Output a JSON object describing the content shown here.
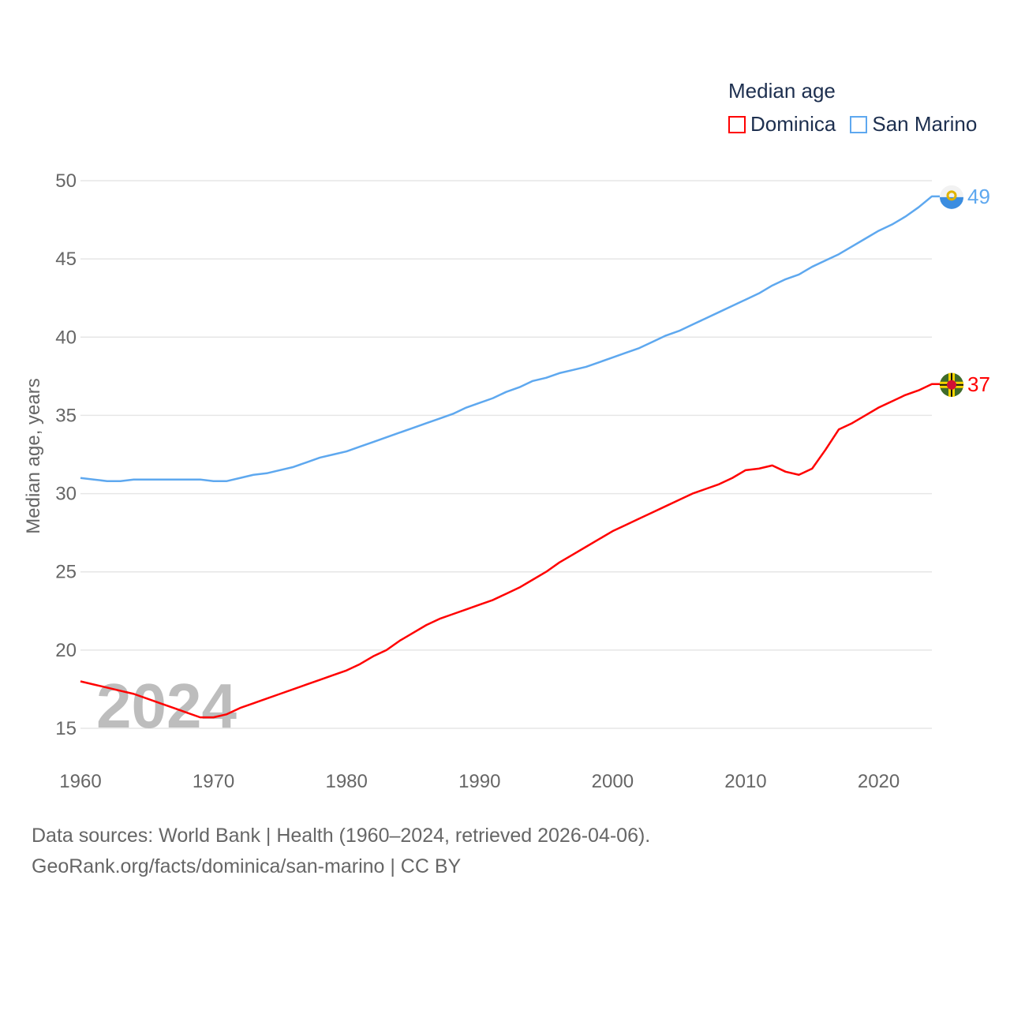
{
  "chart_data": {
    "type": "line",
    "legend_title": "Median age",
    "legend_placement": "top-right",
    "ylabel": "Median age, years",
    "xlabel": "",
    "ylim": [
      15,
      50
    ],
    "xlim": [
      1960,
      2024
    ],
    "yticks": [
      15,
      20,
      25,
      30,
      35,
      40,
      45,
      50
    ],
    "xticks": [
      1960,
      1970,
      1980,
      1990,
      2000,
      2010,
      2020
    ],
    "grid": true,
    "year_watermark": "2024",
    "x": [
      1960,
      1961,
      1962,
      1963,
      1964,
      1965,
      1966,
      1967,
      1968,
      1969,
      1970,
      1971,
      1972,
      1973,
      1974,
      1975,
      1976,
      1977,
      1978,
      1979,
      1980,
      1981,
      1982,
      1983,
      1984,
      1985,
      1986,
      1987,
      1988,
      1989,
      1990,
      1991,
      1992,
      1993,
      1994,
      1995,
      1996,
      1997,
      1998,
      1999,
      2000,
      2001,
      2002,
      2003,
      2004,
      2005,
      2006,
      2007,
      2008,
      2009,
      2010,
      2011,
      2012,
      2013,
      2014,
      2015,
      2016,
      2017,
      2018,
      2019,
      2020,
      2021,
      2022,
      2023,
      2024
    ],
    "series": [
      {
        "name": "Dominica",
        "color": "#ff0000",
        "end_label": "37",
        "values": [
          18.0,
          17.8,
          17.6,
          17.4,
          17.2,
          16.9,
          16.6,
          16.3,
          16.0,
          15.7,
          15.7,
          15.9,
          16.3,
          16.6,
          16.9,
          17.2,
          17.5,
          17.8,
          18.1,
          18.4,
          18.7,
          19.1,
          19.6,
          20.0,
          20.6,
          21.1,
          21.6,
          22.0,
          22.3,
          22.6,
          22.9,
          23.2,
          23.6,
          24.0,
          24.5,
          25.0,
          25.6,
          26.1,
          26.6,
          27.1,
          27.6,
          28.0,
          28.4,
          28.8,
          29.2,
          29.6,
          30.0,
          30.3,
          30.6,
          31.0,
          31.5,
          31.6,
          31.8,
          31.4,
          31.2,
          31.6,
          32.8,
          34.1,
          34.5,
          35.0,
          35.5,
          35.9,
          36.3,
          36.6,
          37.0
        ]
      },
      {
        "name": "San Marino",
        "color": "#5ea8ef",
        "end_label": "49",
        "values": [
          31.0,
          30.9,
          30.8,
          30.8,
          30.9,
          30.9,
          30.9,
          30.9,
          30.9,
          30.9,
          30.8,
          30.8,
          31.0,
          31.2,
          31.3,
          31.5,
          31.7,
          32.0,
          32.3,
          32.5,
          32.7,
          33.0,
          33.3,
          33.6,
          33.9,
          34.2,
          34.5,
          34.8,
          35.1,
          35.5,
          35.8,
          36.1,
          36.5,
          36.8,
          37.2,
          37.4,
          37.7,
          37.9,
          38.1,
          38.4,
          38.7,
          39.0,
          39.3,
          39.7,
          40.1,
          40.4,
          40.8,
          41.2,
          41.6,
          42.0,
          42.4,
          42.8,
          43.3,
          43.7,
          44.0,
          44.5,
          44.9,
          45.3,
          45.8,
          46.3,
          46.8,
          47.2,
          47.7,
          48.3,
          49.0
        ]
      }
    ]
  },
  "footer": {
    "line1": "Data sources: World Bank | Health (1960–2024, retrieved 2026-04-06).",
    "line2": "GeoRank.org/facts/dominica/san-marino | CC BY"
  }
}
